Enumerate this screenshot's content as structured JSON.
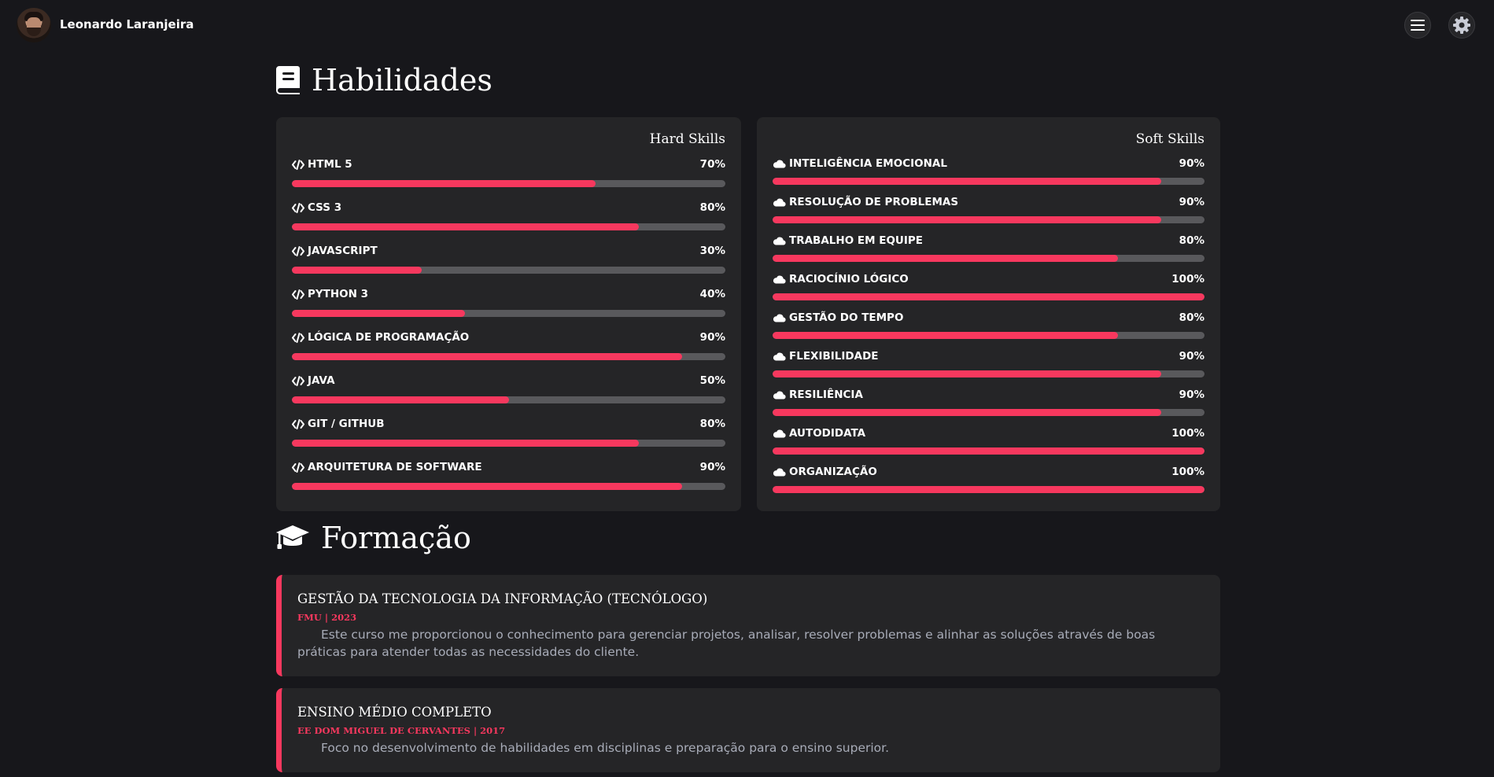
{
  "header": {
    "user_name": "Leonardo Laranjeira",
    "icons": {
      "menu": "hamburger-menu-icon",
      "settings": "gear-icon"
    }
  },
  "skills_section": {
    "title": "Habilidades",
    "icon": "book-icon",
    "hard": {
      "heading": "Hard Skills",
      "icon": "code-icon",
      "items": [
        {
          "label": "HTML 5",
          "percent_label": "70%",
          "value": 70
        },
        {
          "label": "CSS 3",
          "percent_label": "80%",
          "value": 80
        },
        {
          "label": "JAVASCRIPT",
          "percent_label": "30%",
          "value": 30
        },
        {
          "label": "PYTHON 3",
          "percent_label": "40%",
          "value": 40
        },
        {
          "label": "LÓGICA DE PROGRAMAÇÃO",
          "percent_label": "90%",
          "value": 90
        },
        {
          "label": "JAVA",
          "percent_label": "50%",
          "value": 50
        },
        {
          "label": "GIT / GITHUB",
          "percent_label": "80%",
          "value": 80
        },
        {
          "label": "ARQUITETURA DE SOFTWARE",
          "percent_label": "90%",
          "value": 90
        }
      ]
    },
    "soft": {
      "heading": "Soft Skills",
      "icon": "cloud-icon",
      "items": [
        {
          "label": "INTELIGÊNCIA EMOCIONAL",
          "percent_label": "90%",
          "value": 90
        },
        {
          "label": "RESOLUÇÃO DE PROBLEMAS",
          "percent_label": "90%",
          "value": 90
        },
        {
          "label": "TRABALHO EM EQUIPE",
          "percent_label": "80%",
          "value": 80
        },
        {
          "label": "RACIOCÍNIO LÓGICO",
          "percent_label": "100%",
          "value": 100
        },
        {
          "label": "GESTÃO DO TEMPO",
          "percent_label": "80%",
          "value": 80
        },
        {
          "label": "FLEXIBILIDADE",
          "percent_label": "90%",
          "value": 90
        },
        {
          "label": "RESILIÊNCIA",
          "percent_label": "90%",
          "value": 90
        },
        {
          "label": "AUTODIDATA",
          "percent_label": "100%",
          "value": 100
        },
        {
          "label": "ORGANIZAÇÃO",
          "percent_label": "100%",
          "value": 100
        }
      ]
    }
  },
  "education_section": {
    "title": "Formação",
    "icon": "graduation-cap-icon",
    "items": [
      {
        "title": "GESTÃO DA TECNOLOGIA DA INFORMAÇÃO (TECNÓLOGO)",
        "institution": "FMU | 2023",
        "description": "Este curso me proporcionou o conhecimento para gerenciar projetos, analisar, resolver problemas e alinhar as soluções através de boas práticas para atender todas as necessidades do cliente."
      },
      {
        "title": "ENSINO MÉDIO COMPLETO",
        "institution": "EE DOM MIGUEL DE CERVANTES | 2017",
        "description": "Foco no desenvolvimento de habilidades em disciplinas e preparação para o ensino superior."
      }
    ]
  },
  "colors": {
    "background": "#17171b",
    "card": "#252527",
    "accent": "#f7385e",
    "track": "#59595c",
    "muted_text": "#a8acb8"
  }
}
